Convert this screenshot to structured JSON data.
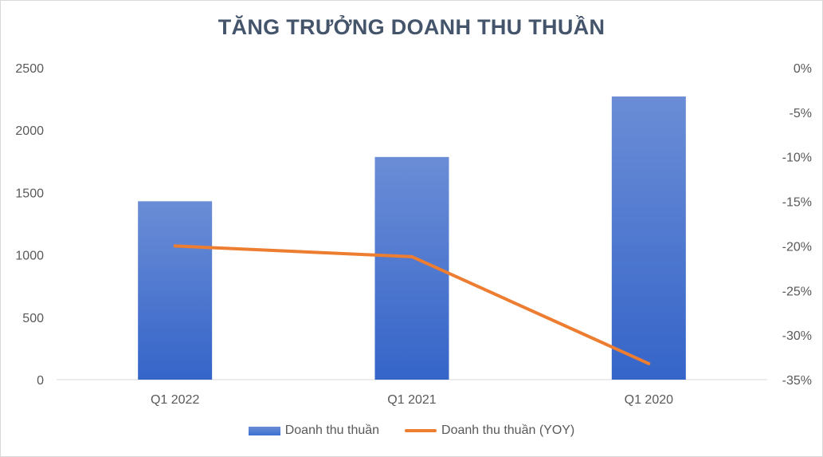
{
  "chart_data": {
    "type": "bar+line",
    "title": "TĂNG TRƯỞNG DOANH THU THUẦN",
    "categories": [
      "Q1 2022",
      "Q1 2021",
      "Q1 2020"
    ],
    "series": [
      {
        "name": "Doanh thu thuần",
        "type": "bar",
        "axis": "left",
        "values": [
          1430,
          1785,
          2270
        ]
      },
      {
        "name": "Doanh thu thuần (YOY)",
        "type": "line",
        "axis": "right",
        "values": [
          -20.0,
          -21.2,
          -33.2
        ]
      }
    ],
    "y_left": {
      "ylim": [
        0,
        2500
      ],
      "ticks": [
        0,
        500,
        1000,
        1500,
        2000,
        2500
      ],
      "tick_labels": [
        "0",
        "500",
        "1000",
        "1500",
        "2000",
        "2500"
      ]
    },
    "y_right": {
      "ylim": [
        -35,
        0
      ],
      "ticks": [
        0,
        -5,
        -10,
        -15,
        -20,
        -25,
        -30,
        -35
      ],
      "tick_labels": [
        "0%",
        "-5%",
        "-10%",
        "-15%",
        "-20%",
        "-25%",
        "-30%",
        "-35%"
      ]
    },
    "grid": false,
    "legend": "bottom",
    "colors": {
      "bar": "#4472c4",
      "line": "#ed7d31"
    }
  }
}
